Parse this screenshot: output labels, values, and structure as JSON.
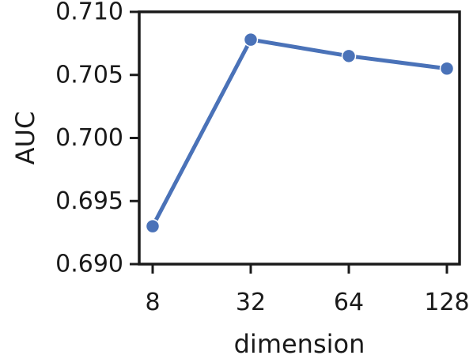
{
  "chart_data": {
    "type": "line",
    "title": "",
    "xlabel": "dimension",
    "ylabel": "AUC",
    "categories": [
      "8",
      "32",
      "64",
      "128"
    ],
    "series": [
      {
        "values": [
          0.693,
          0.7078,
          0.7065,
          0.7055
        ],
        "color": "#4a72b8"
      }
    ],
    "yticks": [
      0.69,
      0.695,
      0.7,
      0.705,
      0.71
    ],
    "ytick_labels": [
      "0.690",
      "0.695",
      "0.700",
      "0.705",
      "0.710"
    ],
    "ylim": [
      0.69,
      0.71
    ],
    "grid": false,
    "legend": "none",
    "colors": {
      "line": "#4a72b8",
      "axes": "#1a1a1a"
    }
  }
}
